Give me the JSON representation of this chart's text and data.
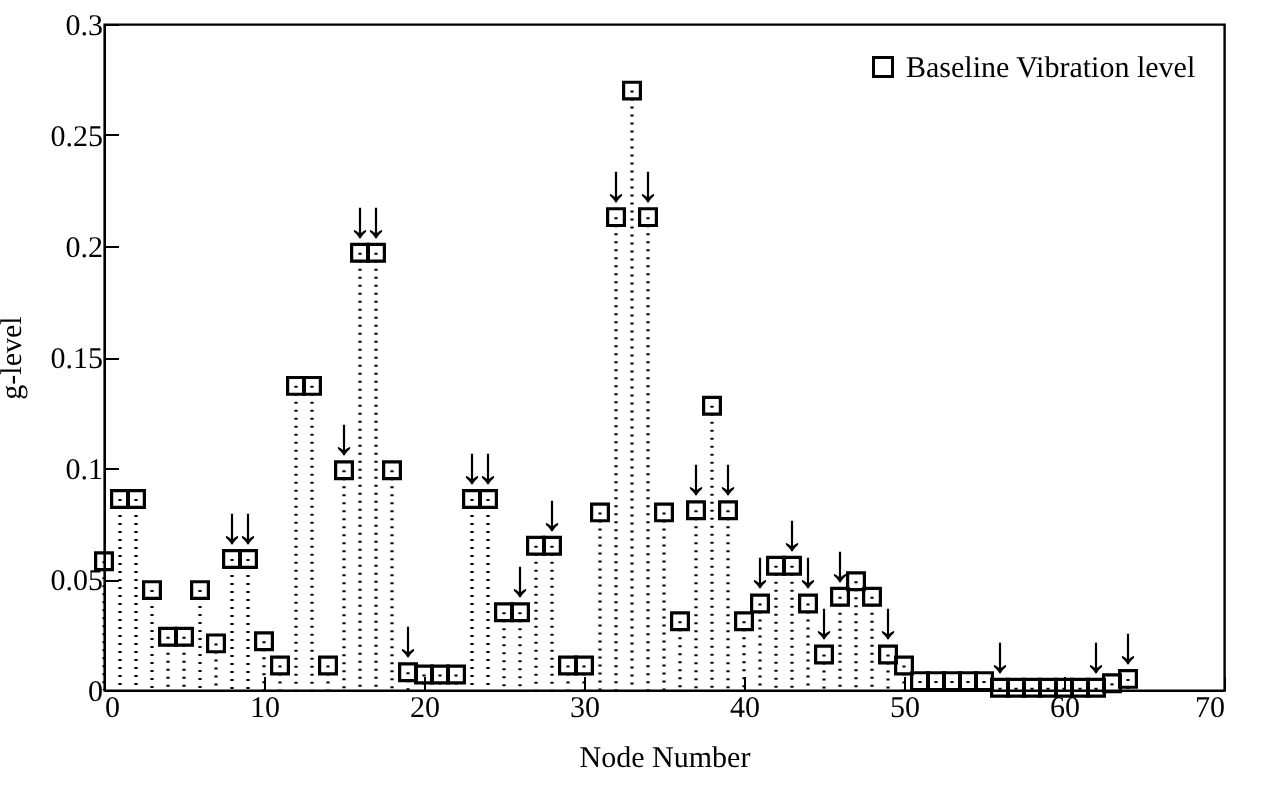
{
  "chart_data": {
    "type": "lollipop",
    "xlabel": "Node Number",
    "ylabel": "g-level",
    "x": [
      0,
      1,
      2,
      3,
      4,
      5,
      6,
      7,
      8,
      9,
      10,
      11,
      12,
      13,
      14,
      15,
      16,
      17,
      18,
      19,
      20,
      21,
      22,
      23,
      24,
      25,
      26,
      27,
      28,
      29,
      30,
      31,
      32,
      33,
      34,
      35,
      36,
      37,
      38,
      39,
      40,
      41,
      42,
      43,
      44,
      45,
      46,
      47,
      48,
      49,
      50,
      51,
      52,
      53,
      54,
      55,
      56,
      57,
      58,
      59,
      60,
      61,
      62,
      63,
      64
    ],
    "series": [
      {
        "name": "Baseline Vibration level",
        "color": "#000000",
        "values": [
          0.058,
          0.086,
          0.086,
          0.045,
          0.024,
          0.024,
          0.045,
          0.021,
          0.059,
          0.059,
          0.022,
          0.011,
          0.137,
          0.137,
          0.011,
          0.099,
          0.197,
          0.197,
          0.099,
          0.008,
          0.007,
          0.007,
          0.007,
          0.086,
          0.086,
          0.035,
          0.035,
          0.065,
          0.065,
          0.011,
          0.011,
          0.08,
          0.213,
          0.27,
          0.213,
          0.08,
          0.031,
          0.081,
          0.128,
          0.081,
          0.031,
          0.039,
          0.056,
          0.056,
          0.039,
          0.016,
          0.042,
          0.049,
          0.042,
          0.016,
          0.011,
          0.004,
          0.004,
          0.004,
          0.004,
          0.004,
          0.001,
          0.001,
          0.001,
          0.001,
          0.001,
          0.001,
          0.001,
          0.003,
          0.005
        ]
      }
    ],
    "xlim": [
      0,
      70
    ],
    "xticks": [
      0,
      10,
      20,
      30,
      40,
      50,
      60,
      70
    ],
    "ylim": [
      0,
      0.3
    ],
    "yticks": [
      0,
      0.05,
      0.1,
      0.15,
      0.2,
      0.25,
      0.3
    ],
    "legend": "top right",
    "marker": "square",
    "line_style": "dotted",
    "annotations": [
      {
        "text": "↓",
        "x": 8,
        "y": 0.059
      },
      {
        "text": "↓",
        "x": 9,
        "y": 0.059
      },
      {
        "text": "↓",
        "x": 15,
        "y": 0.099
      },
      {
        "text": "↓",
        "x": 16,
        "y": 0.197
      },
      {
        "text": "↓",
        "x": 17,
        "y": 0.197
      },
      {
        "text": "↓",
        "x": 19,
        "y": 0.008
      },
      {
        "text": "↓",
        "x": 23,
        "y": 0.086
      },
      {
        "text": "↓",
        "x": 24,
        "y": 0.086
      },
      {
        "text": "↓",
        "x": 26,
        "y": 0.035
      },
      {
        "text": "↓",
        "x": 28,
        "y": 0.065
      },
      {
        "text": "↓",
        "x": 32,
        "y": 0.213
      },
      {
        "text": "↓",
        "x": 34,
        "y": 0.213
      },
      {
        "text": "↓",
        "x": 37,
        "y": 0.081
      },
      {
        "text": "↓",
        "x": 39,
        "y": 0.081
      },
      {
        "text": "↓",
        "x": 41,
        "y": 0.039
      },
      {
        "text": "↓",
        "x": 43,
        "y": 0.056
      },
      {
        "text": "↓",
        "x": 44,
        "y": 0.039
      },
      {
        "text": "↓",
        "x": 45,
        "y": 0.016
      },
      {
        "text": "↓",
        "x": 46,
        "y": 0.042
      },
      {
        "text": "↓",
        "x": 49,
        "y": 0.016
      },
      {
        "text": "↓",
        "x": 56,
        "y": 0.001
      },
      {
        "text": "↓",
        "x": 62,
        "y": 0.001
      },
      {
        "text": "↓",
        "x": 64,
        "y": 0.005
      }
    ]
  }
}
